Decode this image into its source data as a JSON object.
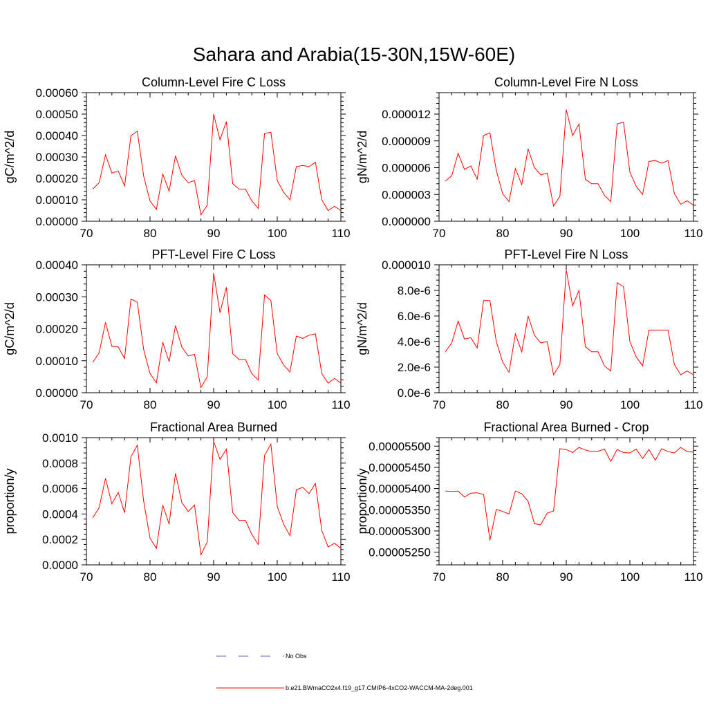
{
  "title": "Sahara and Arabia(15-30N,15W-60E)",
  "legend": {
    "items": [
      {
        "label": "No Obs",
        "color": "#6464c8",
        "dash": true
      },
      {
        "label": "b.e21.BWmaCO2x4.f19_g17.CMIP6-4xCO2-WACCM-MA-2deg.001",
        "color": "#ff0000",
        "dash": false
      }
    ]
  },
  "chart_data": [
    {
      "type": "line",
      "title": "Column-Level Fire C Loss",
      "ylabel": "gC/m^2/d",
      "xlim": [
        70,
        110
      ],
      "ylim": [
        0,
        0.0006
      ],
      "xticks": [
        70,
        80,
        90,
        100,
        110
      ],
      "yticks": [
        0,
        0.0001,
        0.0002,
        0.0003,
        0.0004,
        0.0005,
        0.0006
      ],
      "ytick_labels": [
        "0.00000",
        "0.00010",
        "0.00020",
        "0.00030",
        "0.00040",
        "0.00050",
        "0.00060"
      ],
      "series": [
        {
          "color": "#ff0000",
          "x": [
            71,
            72,
            73,
            74,
            75,
            76,
            77,
            78,
            79,
            80,
            81,
            82,
            83,
            84,
            85,
            86,
            87,
            88,
            89,
            90,
            91,
            92,
            93,
            94,
            95,
            96,
            97,
            98,
            99,
            100,
            101,
            102,
            103,
            104,
            105,
            106,
            107,
            108,
            109,
            110
          ],
          "y": [
            0.00015,
            0.00018,
            0.00031,
            0.000225,
            0.000235,
            0.000165,
            0.0004,
            0.00042,
            0.00021,
            9.5e-05,
            5.5e-05,
            0.00022,
            0.00014,
            0.000305,
            0.000215,
            0.00018,
            0.00019,
            3e-05,
            7.5e-05,
            0.0005,
            0.00038,
            0.000465,
            0.000175,
            0.00015,
            0.00015,
            9.5e-05,
            6e-05,
            0.00041,
            0.000415,
            0.00019,
            0.000135,
            0.0001,
            0.000255,
            0.00026,
            0.000255,
            0.000275,
            0.0001,
            5e-05,
            7e-05,
            5e-05
          ]
        }
      ]
    },
    {
      "type": "line",
      "title": "Column-Level Fire N Loss",
      "ylabel": "gN/m^2/d",
      "xlim": [
        70,
        110
      ],
      "ylim": [
        0,
        1.44e-05
      ],
      "xticks": [
        70,
        80,
        90,
        100,
        110
      ],
      "yticks": [
        0,
        3e-06,
        6e-06,
        9e-06,
        1.2e-05
      ],
      "ytick_labels": [
        "0.000000",
        "0.000003",
        "0.000006",
        "0.000009",
        "0.000012"
      ],
      "series": [
        {
          "color": "#ff0000",
          "x": [
            71,
            72,
            73,
            74,
            75,
            76,
            77,
            78,
            79,
            80,
            81,
            82,
            83,
            84,
            85,
            86,
            87,
            88,
            89,
            90,
            91,
            92,
            93,
            94,
            95,
            96,
            97,
            98,
            99,
            100,
            101,
            102,
            103,
            104,
            105,
            106,
            107,
            108,
            109,
            110
          ],
          "y": [
            4.5e-06,
            5.1e-06,
            7.6e-06,
            5.8e-06,
            6.2e-06,
            4.7e-06,
            9.6e-06,
            9.9e-06,
            5.7e-06,
            3.1e-06,
            2.2e-06,
            5.9e-06,
            4.1e-06,
            8.1e-06,
            6e-06,
            5.2e-06,
            5.4e-06,
            1.7e-06,
            2.8e-06,
            1.25e-05,
            9.6e-06,
            1.09e-05,
            4.7e-06,
            4.2e-06,
            4.2e-06,
            2.9e-06,
            2.2e-06,
            1.09e-05,
            1.11e-05,
            5.5e-06,
            3.9e-06,
            3e-06,
            6.7e-06,
            6.8e-06,
            6.5e-06,
            6.8e-06,
            3.1e-06,
            1.9e-06,
            2.3e-06,
            1.8e-06
          ]
        }
      ]
    },
    {
      "type": "line",
      "title": "PFT-Level Fire C Loss",
      "ylabel": "gC/m^2/d",
      "xlim": [
        70,
        110
      ],
      "ylim": [
        0,
        0.0004
      ],
      "xticks": [
        70,
        80,
        90,
        100,
        110
      ],
      "yticks": [
        0,
        0.0001,
        0.0002,
        0.0003,
        0.0004
      ],
      "ytick_labels": [
        "0.00000",
        "0.00010",
        "0.00020",
        "0.00030",
        "0.00040"
      ],
      "series": [
        {
          "color": "#ff0000",
          "x": [
            71,
            72,
            73,
            74,
            75,
            76,
            77,
            78,
            79,
            80,
            81,
            82,
            83,
            84,
            85,
            86,
            87,
            88,
            89,
            90,
            91,
            92,
            93,
            94,
            95,
            96,
            97,
            98,
            99,
            100,
            101,
            102,
            103,
            104,
            105,
            106,
            107,
            108,
            109,
            110
          ],
          "y": [
            9.5e-05,
            0.000125,
            0.00022,
            0.000145,
            0.000143,
            0.000107,
            0.000293,
            0.000283,
            0.000135,
            6e-05,
            3.1e-05,
            0.000158,
            9.7e-05,
            0.00021,
            0.000143,
            0.000115,
            0.00012,
            1.6e-05,
            5e-05,
            0.000374,
            0.00025,
            0.00033,
            0.000122,
            0.000104,
            0.000104,
            6e-05,
            4e-05,
            0.000306,
            0.000288,
            0.000122,
            8.7e-05,
            6.5e-05,
            0.000177,
            0.00017,
            0.00018,
            0.000184,
            6e-05,
            3e-05,
            4.5e-05,
            3e-05
          ]
        }
      ]
    },
    {
      "type": "line",
      "title": "PFT-Level Fire N Loss",
      "ylabel": "gN/m^2/d",
      "xlim": [
        70,
        110
      ],
      "ylim": [
        0,
        1e-05
      ],
      "xticks": [
        70,
        80,
        90,
        100,
        110
      ],
      "yticks": [
        0,
        2e-06,
        4e-06,
        6e-06,
        8e-06,
        1e-05
      ],
      "ytick_labels": [
        "0.0e-6",
        "2.0e-6",
        "4.0e-6",
        "6.0e-6",
        "8.0e-6",
        "0.000010"
      ],
      "series": [
        {
          "color": "#ff0000",
          "x": [
            71,
            72,
            73,
            74,
            75,
            76,
            77,
            78,
            79,
            80,
            81,
            82,
            83,
            84,
            85,
            86,
            87,
            88,
            89,
            90,
            91,
            92,
            93,
            94,
            95,
            96,
            97,
            98,
            99,
            100,
            101,
            102,
            103,
            104,
            105,
            106,
            107,
            108,
            109,
            110
          ],
          "y": [
            3.2e-06,
            3.9e-06,
            5.6e-06,
            4.2e-06,
            4.3e-06,
            3.5e-06,
            7.2e-06,
            7.2e-06,
            4e-06,
            2.4e-06,
            1.6e-06,
            4.6e-06,
            3.2e-06,
            6e-06,
            4.5e-06,
            3.9e-06,
            4e-06,
            1.4e-06,
            2.2e-06,
            9.6e-06,
            6.8e-06,
            8e-06,
            3.6e-06,
            3.2e-06,
            3.2e-06,
            2.1e-06,
            1.7e-06,
            8.6e-06,
            8.3e-06,
            4e-06,
            2.8e-06,
            2.1e-06,
            4.9e-06,
            4.9e-06,
            4.9e-06,
            4.9e-06,
            2.2e-06,
            1.4e-06,
            1.7e-06,
            1.4e-06
          ]
        }
      ]
    },
    {
      "type": "line",
      "title": "Fractional Area Burned",
      "ylabel": "proportion/y",
      "xlim": [
        70,
        110
      ],
      "ylim": [
        0,
        0.001
      ],
      "xticks": [
        70,
        80,
        90,
        100,
        110
      ],
      "yticks": [
        0,
        0.0002,
        0.0004,
        0.0006,
        0.0008,
        0.001
      ],
      "ytick_labels": [
        "0.0000",
        "0.0002",
        "0.0004",
        "0.0006",
        "0.0008",
        "0.0010"
      ],
      "series": [
        {
          "color": "#ff0000",
          "x": [
            71,
            72,
            73,
            74,
            75,
            76,
            77,
            78,
            79,
            80,
            81,
            82,
            83,
            84,
            85,
            86,
            87,
            88,
            89,
            90,
            91,
            92,
            93,
            94,
            95,
            96,
            97,
            98,
            99,
            100,
            101,
            102,
            103,
            104,
            105,
            106,
            107,
            108,
            109,
            110
          ],
          "y": [
            0.00037,
            0.00045,
            0.00068,
            0.00048,
            0.00057,
            0.00041,
            0.00085,
            0.00094,
            0.0005,
            0.00021,
            0.00013,
            0.00047,
            0.00032,
            0.00072,
            0.00049,
            0.00042,
            0.00047,
            8e-05,
            0.00018,
            0.00097,
            0.00083,
            0.00091,
            0.00041,
            0.00035,
            0.00035,
            0.00024,
            0.00016,
            0.00086,
            0.00095,
            0.00046,
            0.00032,
            0.00023,
            0.00059,
            0.00061,
            0.00056,
            0.00064,
            0.00027,
            0.00014,
            0.00017,
            0.00013
          ]
        }
      ]
    },
    {
      "type": "line",
      "title": "Fractional Area Burned - Crop",
      "ylabel": "proportion/y",
      "xlim": [
        70,
        110
      ],
      "ylim": [
        5.22e-05,
        5.52e-05
      ],
      "xticks": [
        70,
        80,
        90,
        100,
        110
      ],
      "yticks": [
        5.25e-05,
        5.3e-05,
        5.35e-05,
        5.4e-05,
        5.45e-05,
        5.5e-05
      ],
      "ytick_labels": [
        "0.00005250",
        "0.00005300",
        "0.00005350",
        "0.00005400",
        "0.00005450",
        "0.00005500"
      ],
      "series": [
        {
          "color": "#ff0000",
          "x": [
            71,
            72,
            73,
            74,
            75,
            76,
            77,
            78,
            79,
            80,
            81,
            82,
            83,
            84,
            85,
            86,
            87,
            88,
            89,
            90,
            91,
            92,
            93,
            94,
            95,
            96,
            97,
            98,
            99,
            100,
            101,
            102,
            103,
            104,
            105,
            106,
            107,
            108,
            109,
            110
          ],
          "y": [
            5.394e-05,
            5.393e-05,
            5.394e-05,
            5.38e-05,
            5.389e-05,
            5.39e-05,
            5.386e-05,
            5.278e-05,
            5.351e-05,
            5.346e-05,
            5.34e-05,
            5.394e-05,
            5.388e-05,
            5.37e-05,
            5.317e-05,
            5.315e-05,
            5.342e-05,
            5.347e-05,
            5.494e-05,
            5.492e-05,
            5.485e-05,
            5.497e-05,
            5.491e-05,
            5.487e-05,
            5.488e-05,
            5.493e-05,
            5.464e-05,
            5.492e-05,
            5.485e-05,
            5.484e-05,
            5.493e-05,
            5.471e-05,
            5.492e-05,
            5.467e-05,
            5.494e-05,
            5.487e-05,
            5.484e-05,
            5.497e-05,
            5.487e-05,
            5.486e-05
          ]
        }
      ]
    }
  ]
}
